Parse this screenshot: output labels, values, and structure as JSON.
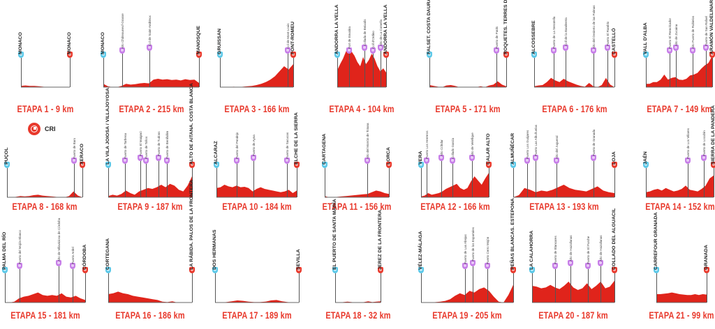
{
  "colors": {
    "profile": "#e0241b",
    "profile_dark": "#9e140e",
    "start": "#5bc8e8",
    "climb": "#c77ee8",
    "finish": "#e8392c",
    "title": "#e8392c"
  },
  "stage1_badge": {
    "icon": "stopwatch-icon",
    "label": "CRI"
  },
  "stages": [
    {
      "label": "ETAPA 1 - 9 km",
      "start": "MONACO",
      "finish": "MONACO",
      "climbs": [],
      "profile": [
        3,
        4,
        3,
        3,
        2,
        1,
        0,
        0,
        0,
        0,
        0,
        0
      ]
    },
    {
      "label": "ETAPA 2 - 215 km",
      "start": "MONACO",
      "finish": "MANOSQUE",
      "climbs": [
        {
          "name": "Alto Châteauneuf-Grasse",
          "at": 0.2
        },
        {
          "name": "Col de Saint-Andrieux",
          "at": 0.48
        }
      ],
      "profile": [
        8,
        2,
        0,
        0,
        3,
        8,
        6,
        7,
        9,
        10,
        9,
        18,
        20,
        18,
        19,
        17,
        18,
        16,
        19,
        17,
        18,
        10
      ]
    },
    {
      "label": "ETAPA 3 - 166 km",
      "start": "GRUISSAN",
      "finish": "FONT-ROMEU",
      "climbs": [
        {
          "name": "Col de Mont-Louis",
          "at": 0.92
        }
      ],
      "profile": [
        0,
        0,
        0,
        1,
        0,
        1,
        2,
        3,
        5,
        8,
        12,
        18,
        26,
        38,
        50,
        42,
        55
      ]
    },
    {
      "label": "ETAPA 4 - 104 km",
      "start": "ANDORRA LA VELLA",
      "finish": "ANDORRA LA VELLA",
      "climbs": [
        {
          "name": "Port de Envalira",
          "at": 0.24
        },
        {
          "name": "Collada de Beixalís",
          "at": 0.55
        },
        {
          "name": "Coll d'Ordino",
          "at": 0.73
        },
        {
          "name": "Alto de La Comella",
          "at": 0.88
        }
      ],
      "profile": [
        40,
        55,
        68,
        85,
        95,
        85,
        75,
        60,
        50,
        72,
        55,
        65,
        80,
        68,
        50,
        38,
        45,
        35
      ]
    },
    {
      "label": "ETAPA 5 - 171  km",
      "start": "FALSET. COSTA DAURADA",
      "finish": "ROQUETES. TERRES DE L'EBRE",
      "climbs": [
        {
          "name": "Puerto de Paüls",
          "at": 0.87
        }
      ],
      "profile": [
        5,
        3,
        1,
        0,
        4,
        5,
        3,
        0,
        0,
        0,
        0,
        0,
        2,
        0,
        4,
        6,
        14,
        6,
        2
      ]
    },
    {
      "label": "ETAPA 6 - 176 km",
      "start": "ALCOSSEBRE",
      "finish": "CASTELLÓ",
      "climbs": [
        {
          "name": "Puerto de La Serratella",
          "at": 0.24
        },
        {
          "name": "Coll de la Bandereta",
          "at": 0.39
        },
        {
          "name": "Alto del Desierto de las Palmas",
          "at": 0.74
        },
        {
          "name": "Puerto El Ramblo",
          "at": 0.91
        }
      ],
      "profile": [
        2,
        4,
        5,
        12,
        22,
        16,
        12,
        20,
        14,
        10,
        6,
        3,
        1,
        10,
        2,
        0,
        5,
        22,
        6,
        0
      ]
    },
    {
      "label": "ETAPA 7 - 149 km",
      "start": "VALL D'ALBA",
      "finish": "ARAMÓN VALDELINARES",
      "climbs": [
        {
          "name": "Puerto El Remolcador",
          "at": 0.36
        },
        {
          "name": "Alto de Zucaina",
          "at": 0.45
        },
        {
          "name": "Alto Puerto de Rubielos",
          "at": 0.7
        },
        {
          "name": "Puerto de San Rafael",
          "at": 0.9
        }
      ],
      "profile": [
        8,
        8,
        12,
        12,
        18,
        30,
        18,
        22,
        24,
        18,
        17,
        20,
        28,
        30,
        34,
        44,
        52,
        58,
        75
      ]
    },
    {
      "label": "ETAPA 8 - 168 km",
      "start": "PUÇOL",
      "finish": "XERACO",
      "climbs": [
        {
          "name": "Puerto de Barx",
          "at": 0.89
        }
      ],
      "profile": [
        0,
        0,
        1,
        3,
        2,
        3,
        5,
        6,
        4,
        3,
        2,
        1,
        0,
        0,
        3,
        14,
        4,
        0
      ]
    },
    {
      "label": "ETAPA 9 - 187 km",
      "start": "LA VILA JOIOSA / VILLAJOYOSA",
      "finish": "ALTO DE AITANA. COSTA BLANCA",
      "climbs": [
        {
          "name": "Puerto de Tarbena",
          "at": 0.2
        },
        {
          "name": "Puerto El Maigmó",
          "at": 0.38
        },
        {
          "name": "Puerto de Tollos",
          "at": 0.45
        },
        {
          "name": "Puerto de Tudons",
          "at": 0.6
        },
        {
          "name": "Puerto de Benifallim",
          "at": 0.7
        }
      ],
      "profile": [
        3,
        6,
        4,
        8,
        16,
        10,
        6,
        14,
        18,
        22,
        20,
        24,
        30,
        24,
        32,
        28,
        18,
        14,
        28,
        50
      ]
    },
    {
      "label": "ETAPA 10 - 184 km",
      "start": "ALCARAZ",
      "finish": "ELCHE DE LA SIERRA",
      "climbs": [
        {
          "name": "Puerto del Pendejo",
          "at": 0.25
        },
        {
          "name": "Puerto de Ayna",
          "at": 0.46
        },
        {
          "name": "Puerto de Sacucas",
          "at": 0.88
        }
      ],
      "profile": [
        22,
        24,
        30,
        26,
        24,
        28,
        24,
        25,
        22,
        14,
        20,
        24,
        20,
        18,
        16,
        14,
        12,
        14,
        18,
        10,
        16
      ]
    },
    {
      "label": "ETAPA 11 - 156 km",
      "start": "CARTAGENA",
      "finish": "LORCA",
      "climbs": [
        {
          "name": "Alto del Morrón de Totana",
          "at": 0.66
        }
      ],
      "profile": [
        3,
        0,
        0,
        1,
        2,
        3,
        4,
        5,
        6,
        7,
        8,
        12,
        16,
        14,
        10,
        8
      ]
    },
    {
      "label": "ETAPA 12 - 166 km",
      "start": "VERA",
      "finish": "CALAR ALTO",
      "climbs": [
        {
          "name": "Puerto Los Herreros",
          "at": 0.08
        },
        {
          "name": "Alto Cóbdar",
          "at": 0.3
        },
        {
          "name": "Collado García",
          "at": 0.46
        },
        {
          "name": "Alto de Velefique",
          "at": 0.75
        }
      ],
      "profile": [
        2,
        4,
        10,
        6,
        8,
        10,
        14,
        20,
        24,
        28,
        32,
        22,
        18,
        22,
        38,
        50,
        40,
        30,
        45,
        58
      ]
    },
    {
      "label": "ETAPA 13 - 193 km",
      "start": "ALMUÑÉCAR",
      "finish": "LOJA",
      "climbs": [
        {
          "name": "Puerto Los Guájares",
          "at": 0.14
        },
        {
          "name": "Puerto Las Albuñuelas",
          "at": 0.22
        },
        {
          "name": "Alto del Jugueral",
          "at": 0.43
        },
        {
          "name": "Puerto de Granada",
          "at": 0.79
        }
      ],
      "profile": [
        0,
        5,
        22,
        18,
        12,
        16,
        14,
        18,
        24,
        30,
        22,
        18,
        16,
        14,
        20,
        26,
        16,
        12,
        10
      ]
    },
    {
      "label": "ETAPA 14 - 152 km",
      "start": "JAÉN",
      "finish": "SIERRA DE LA PANDERA",
      "climbs": [
        {
          "name": "Puerto de Los Villares",
          "at": 0.62
        },
        {
          "name": "Puerto de Locubín",
          "at": 0.86
        }
      ],
      "profile": [
        12,
        14,
        18,
        20,
        16,
        22,
        18,
        14,
        16,
        20,
        28,
        18,
        16,
        14,
        20,
        28,
        45,
        52
      ]
    },
    {
      "label": "ETAPA 15 - 181 km",
      "start": "PALMA DEL RÍO",
      "finish": "CÓRDOBA",
      "climbs": [
        {
          "name": "Puerto del Mojón Blanco",
          "at": 0.18
        },
        {
          "name": "Alto de Villaviciosa de Córdoba",
          "at": 0.67
        },
        {
          "name": "Puerto Ardel",
          "at": 0.84
        }
      ],
      "profile": [
        0,
        0,
        2,
        10,
        14,
        16,
        20,
        24,
        18,
        16,
        18,
        16,
        22,
        14,
        12,
        16,
        10,
        6
      ]
    },
    {
      "label": "ETAPA 16 - 186 km",
      "start": "CORTEGANA",
      "finish": "LA RÁBIDA. PALOS DE LA FRONTERA",
      "climbs": [],
      "profile": [
        20,
        22,
        26,
        22,
        20,
        16,
        14,
        12,
        10,
        8,
        6,
        2,
        1,
        3,
        0,
        0,
        0,
        0
      ]
    },
    {
      "label": "ETAPA 17 - 189 km",
      "start": "DOS HERMANAS",
      "finish": "SEVILLA",
      "climbs": [],
      "profile": [
        0,
        0,
        1,
        3,
        5,
        4,
        2,
        1,
        1,
        2,
        5,
        6,
        3,
        1,
        0,
        0
      ]
    },
    {
      "label": "ETAPA 18 - 32 km",
      "start": "EL PUERTO DE SANTA MARÍA",
      "finish": "JEREZ DE LA FRONTERA",
      "climbs": [],
      "profile": [
        0,
        0,
        1,
        2,
        1,
        0,
        0,
        1,
        3,
        1,
        2,
        3
      ]
    },
    {
      "label": "ETAPA 19 - 205 km",
      "start": "VÉLEZ-MÁLAGA",
      "finish": "PEÑAS BLANCAS. ESTEPONA",
      "climbs": [
        {
          "name": "Puerto de Las Abejas",
          "at": 0.48
        },
        {
          "name": "Puerto de los Espartales",
          "at": 0.56
        },
        {
          "name": "Puerto Cerro Mojón",
          "at": 0.72
        }
      ],
      "profile": [
        0,
        0,
        0,
        1,
        2,
        4,
        8,
        16,
        22,
        18,
        28,
        24,
        32,
        36,
        28,
        14,
        2,
        0,
        18,
        42
      ]
    },
    {
      "label": "ETAPA 20 - 187 km",
      "start": "LA CALAHORRA",
      "finish": "COLLADO DEL ALGUACIL",
      "climbs": [
        {
          "name": "Puerto de Blancares",
          "at": 0.28
        },
        {
          "name": "Alto de Hazallanas",
          "at": 0.47
        },
        {
          "name": "Puerto de El Purche",
          "at": 0.68
        },
        {
          "name": "Alto de Hazallanas",
          "at": 0.83
        }
      ],
      "profile": [
        40,
        38,
        34,
        36,
        42,
        36,
        32,
        40,
        50,
        36,
        30,
        34,
        46,
        32,
        40,
        50,
        34,
        38,
        52
      ]
    },
    {
      "label": "ETAPA 21 - 99 km",
      "start": "CARREFOUR GRANADA",
      "finish": "GRANADA",
      "climbs": [],
      "profile": [
        20,
        20,
        21,
        22,
        24,
        22,
        20,
        19,
        18,
        18,
        20,
        18,
        20,
        19
      ]
    }
  ]
}
